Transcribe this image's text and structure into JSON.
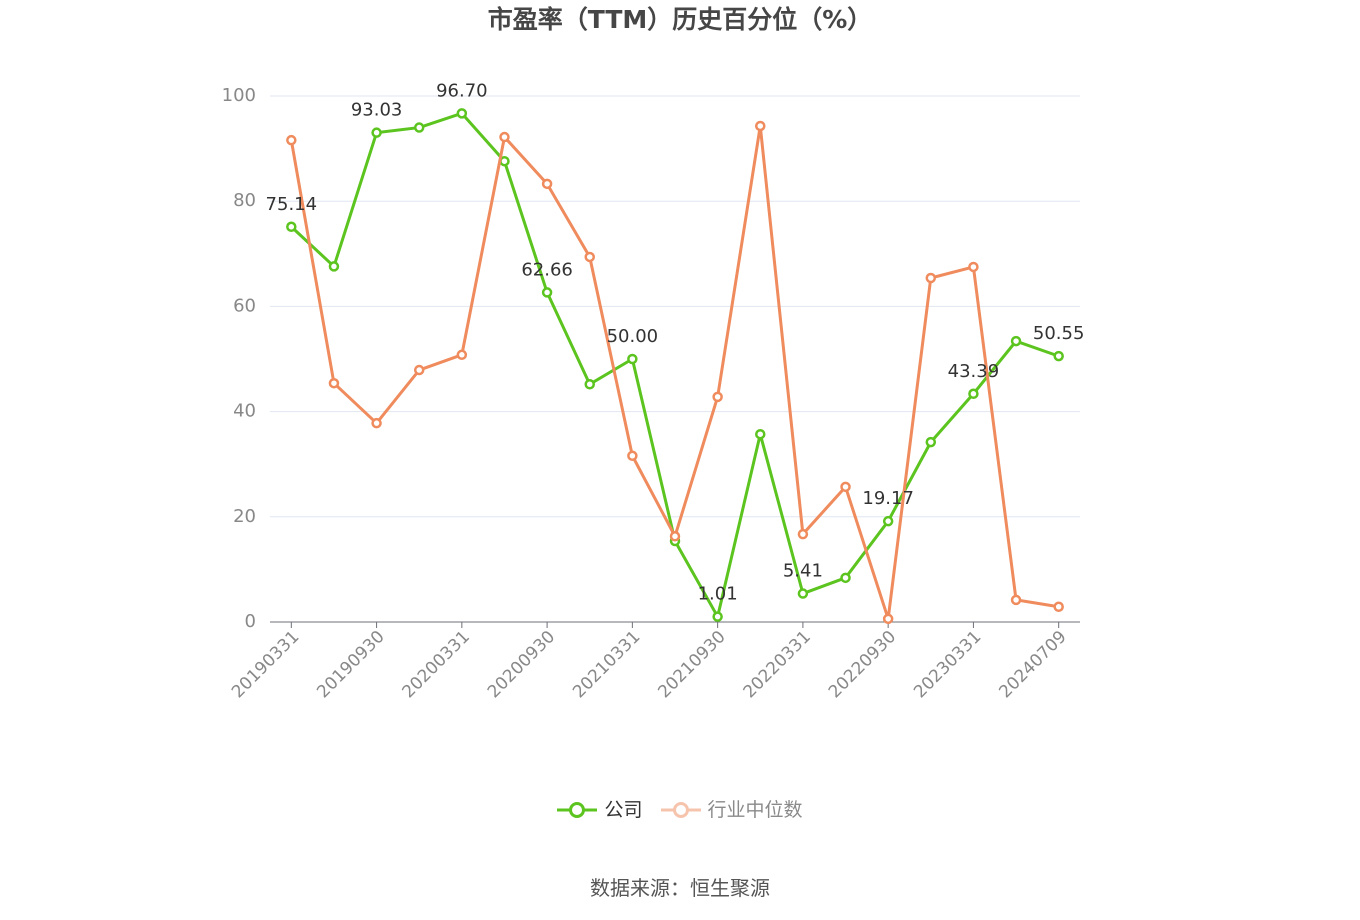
{
  "source": "数据来源：恒生聚源",
  "chart_data": {
    "type": "line",
    "title": "市盈率（TTM）历史百分位（%）",
    "categories": [
      "20190331",
      "",
      "20190930",
      "",
      "20200331",
      "",
      "20200930",
      "",
      "20210331",
      "",
      "20210930",
      "",
      "20220331",
      "",
      "20220930",
      "",
      "20230331",
      "",
      "20240709"
    ],
    "ylim": [
      0,
      100
    ],
    "yticks": [
      0,
      20,
      40,
      60,
      80,
      100
    ],
    "grid": true,
    "legend": "bottom-center",
    "series": [
      {
        "name": "公司",
        "color": "#5cc41f",
        "values": [
          75.14,
          67.6,
          93.03,
          94.0,
          96.7,
          87.6,
          62.66,
          45.2,
          50.0,
          15.4,
          1.01,
          35.7,
          5.41,
          8.4,
          19.17,
          34.2,
          43.39,
          53.4,
          50.55
        ],
        "data_labels": [
          "75.14",
          null,
          "93.03",
          null,
          "96.70",
          null,
          "62.66",
          null,
          "50.00",
          null,
          "1.01",
          null,
          "5.41",
          null,
          "19.17",
          null,
          "43.39",
          null,
          "50.55"
        ]
      },
      {
        "name": "行业中位数",
        "color": "#ef8b5d",
        "values": [
          91.6,
          45.4,
          37.8,
          47.9,
          50.8,
          92.2,
          83.3,
          69.4,
          31.6,
          16.3,
          42.8,
          94.3,
          16.7,
          25.7,
          0.6,
          65.4,
          67.5,
          4.2,
          2.9
        ]
      }
    ]
  }
}
